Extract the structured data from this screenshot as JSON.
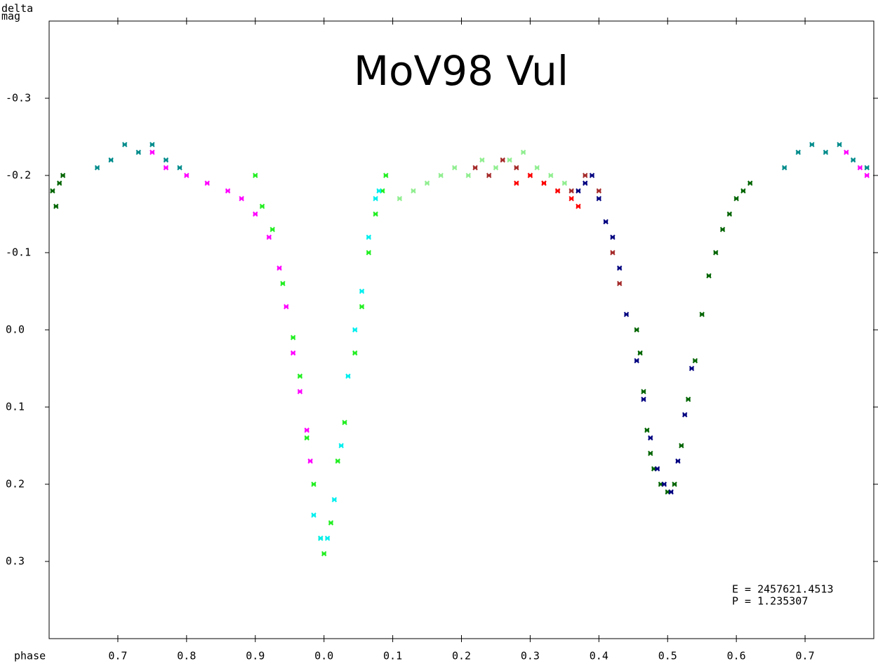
{
  "chart_data": {
    "type": "scatter",
    "title": "MoV98 Vul",
    "y_label": "delta mag",
    "x_label": "phase",
    "annotations": [
      "E = 2457621.4513",
      "P = 1.235307"
    ],
    "xlim": [
      0.6,
      1.8
    ],
    "xticks": [
      0.7,
      0.8,
      0.9,
      {
        "value": 1.0,
        "label": "0.0"
      },
      {
        "value": 1.1,
        "label": "0.1"
      },
      {
        "value": 1.2,
        "label": "0.2"
      },
      {
        "value": 1.3,
        "label": "0.3"
      },
      {
        "value": 1.4,
        "label": "0.4"
      },
      {
        "value": 1.5,
        "label": "0.5"
      },
      {
        "value": 1.6,
        "label": "0.6"
      },
      {
        "value": 1.7,
        "label": "0.7"
      }
    ],
    "ylim": [
      0.4,
      -0.4
    ],
    "yticks": [
      -0.3,
      -0.2,
      -0.1,
      {
        "value": 0,
        "label": "0.0"
      },
      0.1,
      0.2,
      0.3
    ],
    "series": [
      {
        "color": "#006400",
        "x": [
          0.605,
          0.61,
          0.615,
          0.62,
          1.455,
          1.46,
          1.465,
          1.47,
          1.475,
          1.48,
          1.49,
          1.5,
          1.51,
          1.52,
          1.53,
          1.54,
          1.55,
          1.56,
          1.57,
          1.58,
          1.59,
          1.6,
          1.61,
          1.62
        ],
        "values": [
          -0.18,
          -0.16,
          -0.19,
          -0.2,
          0.0,
          0.03,
          0.08,
          0.13,
          0.16,
          0.18,
          0.2,
          0.21,
          0.2,
          0.15,
          0.09,
          0.04,
          -0.02,
          -0.07,
          -0.1,
          -0.13,
          -0.15,
          -0.17,
          -0.18,
          -0.19
        ]
      },
      {
        "color": "#008b8b",
        "x": [
          0.67,
          0.69,
          0.71,
          0.73,
          0.75,
          0.77,
          0.79,
          1.67,
          1.69,
          1.71,
          1.73,
          1.75,
          1.77,
          1.79
        ],
        "values": [
          -0.21,
          -0.22,
          -0.24,
          -0.23,
          -0.24,
          -0.22,
          -0.21,
          -0.21,
          -0.23,
          -0.24,
          -0.23,
          -0.24,
          -0.22,
          -0.21
        ]
      },
      {
        "color": "#ff00ff",
        "x": [
          0.75,
          0.77,
          0.8,
          0.83,
          0.86,
          0.88,
          0.9,
          0.92,
          0.935,
          0.945,
          0.955,
          0.965,
          0.975,
          0.98,
          1.76,
          1.78,
          1.79
        ],
        "values": [
          -0.23,
          -0.21,
          -0.2,
          -0.19,
          -0.18,
          -0.17,
          -0.15,
          -0.12,
          -0.08,
          -0.03,
          0.03,
          0.08,
          0.13,
          0.17,
          -0.23,
          -0.21,
          -0.2
        ]
      },
      {
        "color": "#22ee22",
        "x": [
          0.9,
          0.91,
          0.925,
          0.94,
          0.955,
          0.965,
          0.975,
          0.985,
          0.995,
          1.0,
          1.01,
          1.02,
          1.03,
          1.045,
          1.055,
          1.065,
          1.075,
          1.085,
          1.09
        ],
        "values": [
          -0.2,
          -0.16,
          -0.13,
          -0.06,
          0.01,
          0.06,
          0.14,
          0.2,
          0.27,
          0.29,
          0.25,
          0.17,
          0.12,
          0.03,
          -0.03,
          -0.1,
          -0.15,
          -0.18,
          -0.2
        ]
      },
      {
        "color": "#00eeee",
        "x": [
          0.985,
          0.995,
          1.005,
          1.015,
          1.025,
          1.035,
          1.045,
          1.055,
          1.065,
          1.075,
          1.08
        ],
        "values": [
          0.24,
          0.27,
          0.27,
          0.22,
          0.15,
          0.06,
          0.0,
          -0.05,
          -0.12,
          -0.17,
          -0.18
        ]
      },
      {
        "color": "#90ee90",
        "x": [
          1.11,
          1.13,
          1.15,
          1.17,
          1.19,
          1.21,
          1.23,
          1.25,
          1.27,
          1.29,
          1.31,
          1.33,
          1.35
        ],
        "values": [
          -0.17,
          -0.18,
          -0.19,
          -0.2,
          -0.21,
          -0.2,
          -0.22,
          -0.21,
          -0.22,
          -0.23,
          -0.21,
          -0.2,
          -0.19
        ]
      },
      {
        "color": "#a52a2a",
        "x": [
          1.22,
          1.24,
          1.26,
          1.28,
          1.3,
          1.32,
          1.34,
          1.36,
          1.38,
          1.4,
          1.42,
          1.43
        ],
        "values": [
          -0.21,
          -0.2,
          -0.22,
          -0.21,
          -0.2,
          -0.19,
          -0.18,
          -0.18,
          -0.2,
          -0.18,
          -0.1,
          -0.06
        ]
      },
      {
        "color": "#ff0000",
        "x": [
          1.28,
          1.3,
          1.32,
          1.34,
          1.36,
          1.37
        ],
        "values": [
          -0.19,
          -0.2,
          -0.19,
          -0.18,
          -0.17,
          -0.16
        ]
      },
      {
        "color": "#000080",
        "x": [
          1.37,
          1.38,
          1.39,
          1.4,
          1.41,
          1.42,
          1.43,
          1.44,
          1.455,
          1.465,
          1.475,
          1.485,
          1.495,
          1.505,
          1.515,
          1.525,
          1.535
        ],
        "values": [
          -0.18,
          -0.19,
          -0.2,
          -0.17,
          -0.14,
          -0.12,
          -0.08,
          -0.02,
          0.04,
          0.09,
          0.14,
          0.18,
          0.2,
          0.21,
          0.17,
          0.11,
          0.05
        ]
      }
    ]
  }
}
